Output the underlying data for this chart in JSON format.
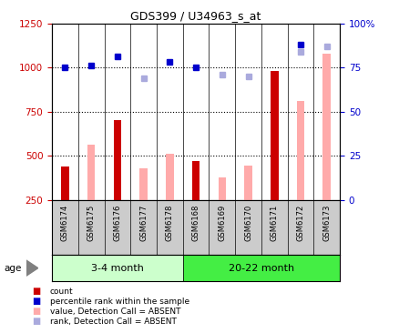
{
  "title": "GDS399 / U34963_s_at",
  "samples": [
    "GSM6174",
    "GSM6175",
    "GSM6176",
    "GSM6177",
    "GSM6178",
    "GSM6168",
    "GSM6169",
    "GSM6170",
    "GSM6171",
    "GSM6172",
    "GSM6173"
  ],
  "count_values": [
    440,
    null,
    700,
    null,
    null,
    470,
    null,
    null,
    980,
    null,
    null
  ],
  "absent_value_bars": [
    null,
    560,
    null,
    430,
    510,
    null,
    375,
    445,
    null,
    810,
    1080
  ],
  "blue_squares": [
    1000,
    1010,
    1065,
    null,
    1030,
    1000,
    null,
    null,
    null,
    1130,
    null
  ],
  "light_blue_squares": [
    null,
    null,
    null,
    940,
    null,
    null,
    960,
    950,
    null,
    1090,
    1120
  ],
  "group1_label": "3-4 month",
  "group2_label": "20-22 month",
  "ylim_left": [
    250,
    1250
  ],
  "ylim_right": [
    0,
    100
  ],
  "yticks_left": [
    250,
    500,
    750,
    1000,
    1250
  ],
  "yticks_right": [
    0,
    25,
    50,
    75,
    100
  ],
  "ytick_right_labels": [
    "0",
    "25",
    "50",
    "75",
    "100%"
  ],
  "hlines": [
    500,
    750,
    1000
  ],
  "count_color": "#cc0000",
  "absent_bar_color": "#ffaaaa",
  "blue_sq_color": "#0000cc",
  "light_blue_sq_color": "#aaaadd",
  "group1_bg": "#ccffcc",
  "group2_bg": "#44ee44",
  "xlabel_bg": "#cccccc",
  "bar_width": 0.3,
  "sq_size": 5
}
